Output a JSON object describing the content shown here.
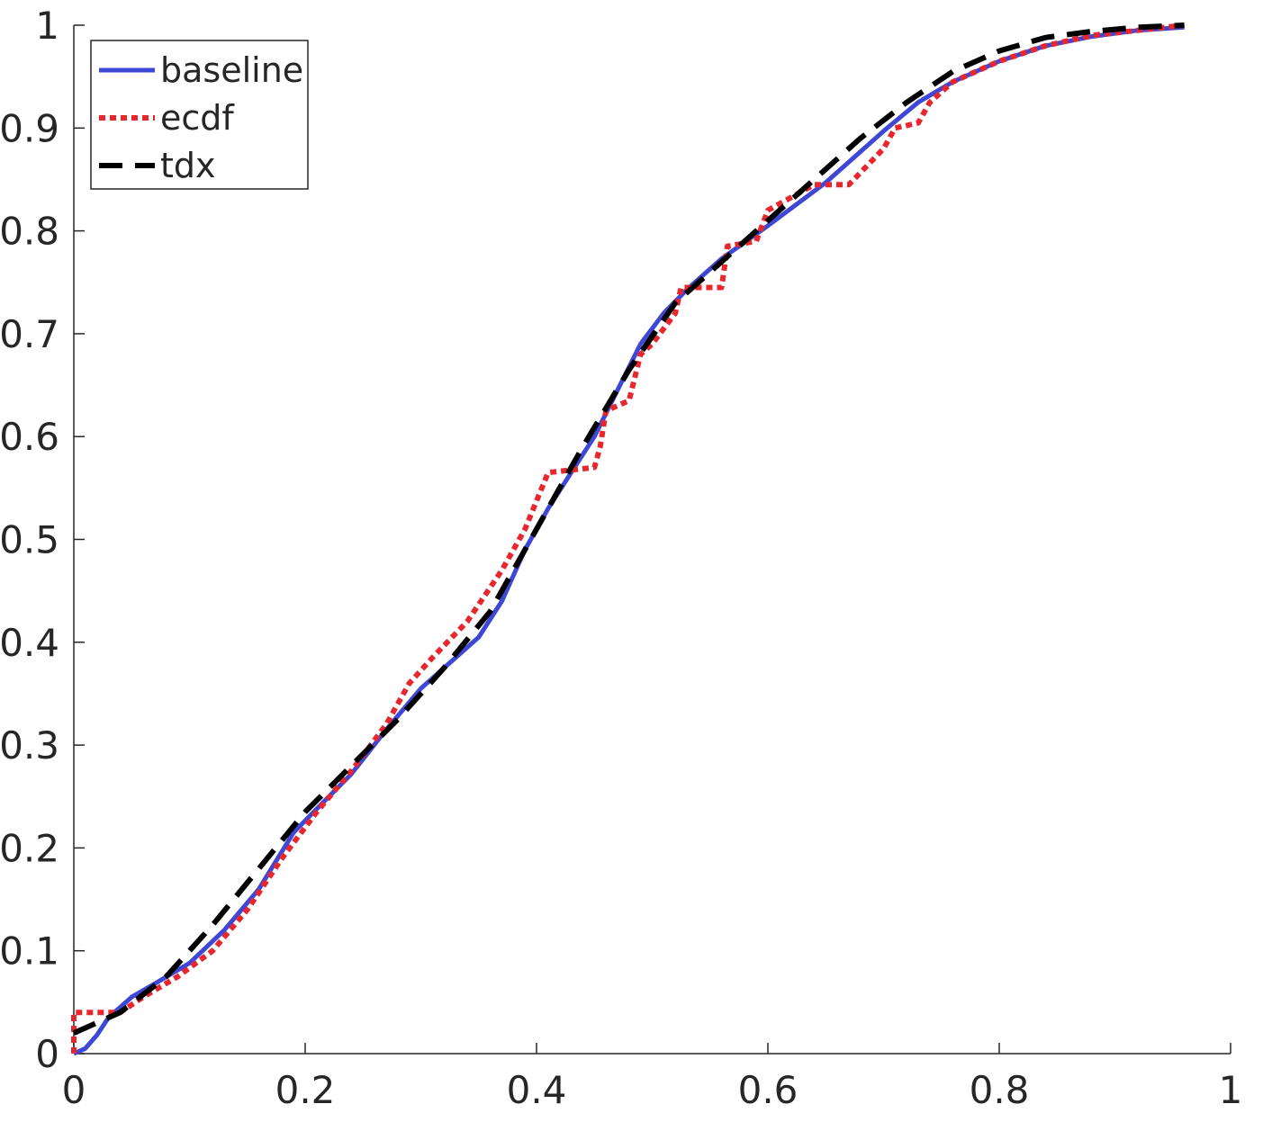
{
  "chart_data": {
    "type": "line",
    "title": "",
    "xlabel": "",
    "ylabel": "",
    "xlim": [
      0,
      1
    ],
    "ylim": [
      0,
      1
    ],
    "xticks": [
      "0",
      "0.2",
      "0.4",
      "0.6",
      "0.8",
      "1"
    ],
    "yticks": [
      "0",
      "0.1",
      "0.2",
      "0.3",
      "0.4",
      "0.5",
      "0.6",
      "0.7",
      "0.8",
      "0.9",
      "1"
    ],
    "grid": false,
    "legend_position": "top-left",
    "series": [
      {
        "name": "baseline",
        "color": "#3f48d6",
        "style": "solid",
        "x": [
          0,
          0.01,
          0.02,
          0.03,
          0.05,
          0.07,
          0.1,
          0.13,
          0.16,
          0.19,
          0.21,
          0.24,
          0.27,
          0.3,
          0.32,
          0.35,
          0.37,
          0.39,
          0.41,
          0.43,
          0.45,
          0.47,
          0.49,
          0.51,
          0.53,
          0.56,
          0.6,
          0.65,
          0.7,
          0.73,
          0.76,
          0.8,
          0.84,
          0.88,
          0.92,
          0.96
        ],
        "y": [
          0.0,
          0.005,
          0.018,
          0.035,
          0.055,
          0.068,
          0.088,
          0.12,
          0.16,
          0.215,
          0.238,
          0.272,
          0.315,
          0.355,
          0.375,
          0.405,
          0.44,
          0.49,
          0.53,
          0.565,
          0.6,
          0.645,
          0.69,
          0.72,
          0.743,
          0.773,
          0.805,
          0.847,
          0.897,
          0.925,
          0.945,
          0.965,
          0.98,
          0.989,
          0.995,
          0.998
        ]
      },
      {
        "name": "ecdf",
        "color": "#e8262d",
        "style": "dotted",
        "x": [
          0,
          0.0,
          0.04,
          0.06,
          0.09,
          0.12,
          0.15,
          0.18,
          0.21,
          0.24,
          0.27,
          0.29,
          0.31,
          0.34,
          0.37,
          0.39,
          0.41,
          0.45,
          0.455,
          0.46,
          0.48,
          0.49,
          0.5,
          0.52,
          0.525,
          0.56,
          0.565,
          0.59,
          0.6,
          0.64,
          0.67,
          0.7,
          0.71,
          0.73,
          0.74,
          0.76,
          0.8,
          0.84,
          0.88,
          0.92,
          0.96
        ],
        "y": [
          0.0,
          0.04,
          0.04,
          0.055,
          0.075,
          0.1,
          0.14,
          0.19,
          0.235,
          0.275,
          0.32,
          0.36,
          0.385,
          0.42,
          0.47,
          0.51,
          0.565,
          0.57,
          0.59,
          0.625,
          0.635,
          0.68,
          0.69,
          0.72,
          0.745,
          0.745,
          0.785,
          0.79,
          0.82,
          0.845,
          0.845,
          0.88,
          0.9,
          0.905,
          0.925,
          0.945,
          0.965,
          0.98,
          0.99,
          0.995,
          1.0
        ]
      },
      {
        "name": "tdx",
        "color": "#000000",
        "style": "dashed",
        "x": [
          0,
          0.04,
          0.08,
          0.12,
          0.16,
          0.2,
          0.24,
          0.28,
          0.32,
          0.36,
          0.4,
          0.44,
          0.48,
          0.52,
          0.56,
          0.6,
          0.64,
          0.68,
          0.72,
          0.76,
          0.8,
          0.84,
          0.88,
          0.92,
          0.96
        ],
        "y": [
          0.02,
          0.04,
          0.075,
          0.125,
          0.18,
          0.235,
          0.28,
          0.325,
          0.375,
          0.43,
          0.51,
          0.59,
          0.665,
          0.73,
          0.77,
          0.81,
          0.85,
          0.89,
          0.925,
          0.955,
          0.975,
          0.988,
          0.994,
          0.998,
          1.0
        ]
      }
    ]
  }
}
